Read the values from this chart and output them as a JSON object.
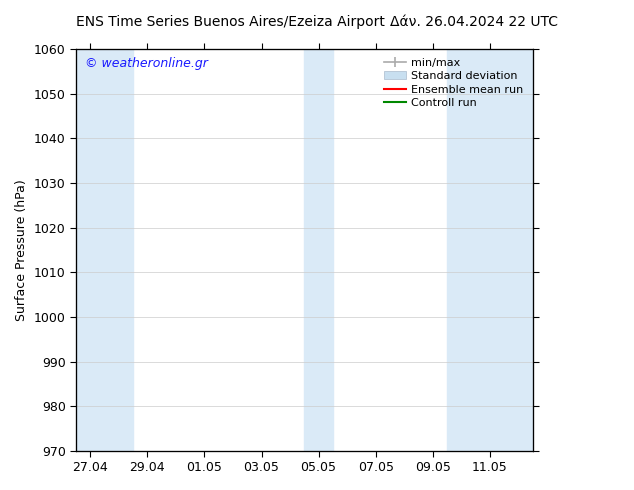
{
  "title_left": "ENS Time Series Buenos Aires/Ezeiza Airport",
  "title_right": "Δάν. 26.04.2024 22 UTC",
  "ylabel": "Surface Pressure (hPa)",
  "ylim": [
    970,
    1060
  ],
  "yticks": [
    970,
    980,
    990,
    1000,
    1010,
    1020,
    1030,
    1040,
    1050,
    1060
  ],
  "xlim_start": 0.0,
  "xlim_end": 16.0,
  "xtick_labels": [
    "27.04",
    "29.04",
    "01.05",
    "03.05",
    "05.05",
    "07.05",
    "09.05",
    "11.05"
  ],
  "xtick_positions": [
    0.5,
    2.5,
    4.5,
    6.5,
    8.5,
    10.5,
    12.5,
    14.5
  ],
  "shaded_bands": [
    {
      "x_start": 0.0,
      "x_end": 2.0
    },
    {
      "x_start": 8.0,
      "x_end": 9.0
    },
    {
      "x_start": 13.0,
      "x_end": 16.0
    }
  ],
  "band_color": "#daeaf7",
  "legend_labels": [
    "min/max",
    "Standard deviation",
    "Ensemble mean run",
    "Controll run"
  ],
  "minmax_color": "#aaaaaa",
  "std_color": "#c8dff0",
  "ens_color": "#ff0000",
  "ctrl_color": "#008800",
  "watermark_text": "© weatheronline.gr",
  "watermark_color": "#1a1aff",
  "bg_color": "#ffffff",
  "plot_bg_color": "#ffffff",
  "title_fontsize": 10,
  "ylabel_fontsize": 9,
  "tick_fontsize": 9,
  "legend_fontsize": 8,
  "watermark_fontsize": 9
}
